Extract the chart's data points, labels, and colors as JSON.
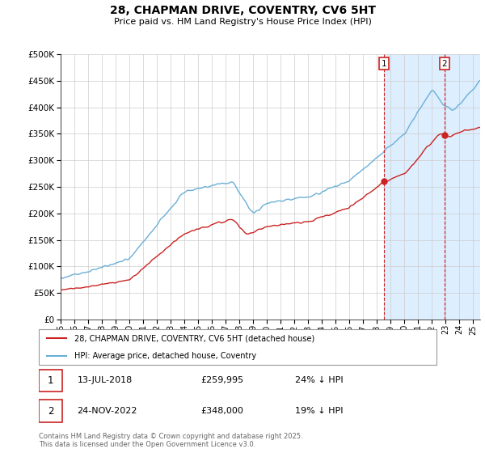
{
  "title": "28, CHAPMAN DRIVE, COVENTRY, CV6 5HT",
  "subtitle": "Price paid vs. HM Land Registry's House Price Index (HPI)",
  "ylim": [
    0,
    500000
  ],
  "yticks": [
    0,
    50000,
    100000,
    150000,
    200000,
    250000,
    300000,
    350000,
    400000,
    450000,
    500000
  ],
  "xlim_start": 1995,
  "xlim_end": 2025.5,
  "hpi_color": "#6aafd6",
  "price_color": "#cc2222",
  "shade_color": "#ddeeff",
  "marker1_year": 2018.53,
  "marker1_price": 259995,
  "marker2_year": 2022.9,
  "marker2_price": 348000,
  "legend_property": "28, CHAPMAN DRIVE, COVENTRY, CV6 5HT (detached house)",
  "legend_hpi": "HPI: Average price, detached house, Coventry",
  "footnote": "Contains HM Land Registry data © Crown copyright and database right 2025.\nThis data is licensed under the Open Government Licence v3.0.",
  "background_color": "#ffffff",
  "grid_color": "#cccccc"
}
